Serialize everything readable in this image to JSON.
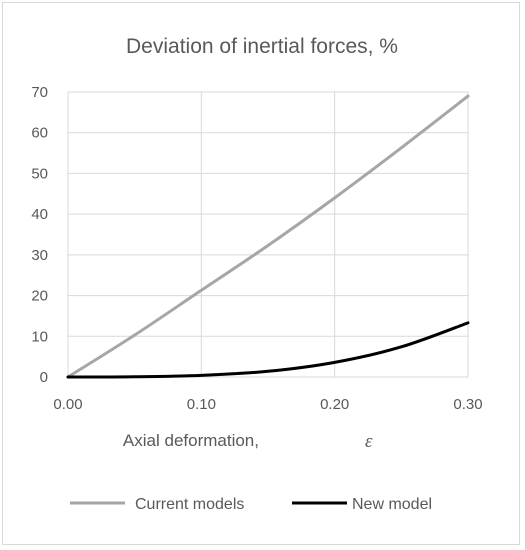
{
  "chart_data": {
    "type": "line",
    "title": "Deviation of inertial forces, %",
    "xlabel": "Axial deformation,",
    "xlabel_symbol": "ε",
    "ylabel": "",
    "xlim": [
      0,
      0.3
    ],
    "ylim": [
      0,
      70
    ],
    "x_ticks": [
      "0.00",
      "0.10",
      "0.20",
      "0.30"
    ],
    "y_ticks": [
      "0",
      "10",
      "20",
      "30",
      "40",
      "50",
      "60",
      "70"
    ],
    "grid": true,
    "legend_position": "bottom",
    "series": [
      {
        "name": "Current models",
        "color": "#a6a6a6",
        "x": [
          0,
          0.05,
          0.1,
          0.15,
          0.2,
          0.25,
          0.3
        ],
        "y": [
          0,
          10.3,
          21.3,
          32.3,
          44.0,
          56.3,
          69.0
        ]
      },
      {
        "name": "New model",
        "color": "#000000",
        "x": [
          0,
          0.05,
          0.1,
          0.15,
          0.2,
          0.25,
          0.3
        ],
        "y": [
          0,
          0.05,
          0.4,
          1.4,
          3.6,
          7.4,
          13.3
        ]
      }
    ]
  }
}
